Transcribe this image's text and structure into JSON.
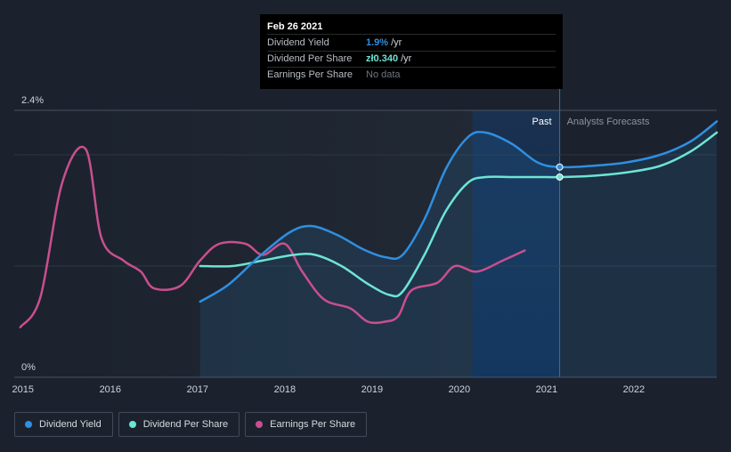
{
  "tooltip": {
    "date": "Feb 26 2021",
    "rows": [
      {
        "label": "Dividend Yield",
        "value": "1.9%",
        "unit": "/yr",
        "color": "#2f8fe0"
      },
      {
        "label": "Dividend Per Share",
        "value": "zł0.340",
        "unit": "/yr",
        "color": "#6de4d4"
      },
      {
        "label": "Earnings Per Share",
        "value": "",
        "unit": "",
        "nodata": "No data",
        "color": ""
      }
    ]
  },
  "regions": {
    "past": "Past",
    "forecast": "Analysts Forecasts"
  },
  "legend": [
    {
      "label": "Dividend Yield",
      "color": "#2f8fe0"
    },
    {
      "label": "Dividend Per Share",
      "color": "#6de4d4"
    },
    {
      "label": "Earnings Per Share",
      "color": "#c94f8e"
    }
  ],
  "chart_data": {
    "type": "line",
    "y_axis_labels": [
      "2.4%",
      "0%"
    ],
    "ylim": [
      0,
      2.4
    ],
    "xlim": [
      2014.9,
      2022.95
    ],
    "x_ticks": [
      "2015",
      "2016",
      "2017",
      "2018",
      "2019",
      "2020",
      "2021",
      "2022"
    ],
    "past_end": 2021.15,
    "past_highlight_start": 2020.15,
    "marker_x": 2021.15,
    "series": [
      {
        "name": "Dividend Yield",
        "color": "#2f8fe0",
        "points": [
          [
            2017.03,
            0.68
          ],
          [
            2017.35,
            0.83
          ],
          [
            2017.7,
            1.08
          ],
          [
            2018.05,
            1.3
          ],
          [
            2018.3,
            1.36
          ],
          [
            2018.6,
            1.28
          ],
          [
            2018.9,
            1.15
          ],
          [
            2019.15,
            1.08
          ],
          [
            2019.35,
            1.1
          ],
          [
            2019.6,
            1.42
          ],
          [
            2019.85,
            1.88
          ],
          [
            2020.1,
            2.16
          ],
          [
            2020.3,
            2.2
          ],
          [
            2020.6,
            2.1
          ],
          [
            2020.9,
            1.93
          ],
          [
            2021.15,
            1.89
          ],
          [
            2021.5,
            1.9
          ],
          [
            2021.9,
            1.93
          ],
          [
            2022.3,
            2.0
          ],
          [
            2022.65,
            2.12
          ],
          [
            2022.95,
            2.3
          ]
        ]
      },
      {
        "name": "Dividend Per Share",
        "color": "#6de4d4",
        "points": [
          [
            2017.03,
            1.0
          ],
          [
            2017.4,
            1.0
          ],
          [
            2017.75,
            1.05
          ],
          [
            2018.1,
            1.1
          ],
          [
            2018.35,
            1.1
          ],
          [
            2018.65,
            1.0
          ],
          [
            2018.95,
            0.84
          ],
          [
            2019.2,
            0.74
          ],
          [
            2019.35,
            0.77
          ],
          [
            2019.6,
            1.1
          ],
          [
            2019.85,
            1.5
          ],
          [
            2020.1,
            1.75
          ],
          [
            2020.3,
            1.8
          ],
          [
            2020.6,
            1.8
          ],
          [
            2020.9,
            1.8
          ],
          [
            2021.15,
            1.8
          ],
          [
            2021.5,
            1.81
          ],
          [
            2021.9,
            1.84
          ],
          [
            2022.3,
            1.9
          ],
          [
            2022.65,
            2.03
          ],
          [
            2022.95,
            2.2
          ]
        ]
      },
      {
        "name": "Earnings Per Share",
        "color": "#c94f8e",
        "points": [
          [
            2014.97,
            0.45
          ],
          [
            2015.2,
            0.72
          ],
          [
            2015.45,
            1.75
          ],
          [
            2015.72,
            2.05
          ],
          [
            2015.9,
            1.25
          ],
          [
            2016.15,
            1.05
          ],
          [
            2016.35,
            0.95
          ],
          [
            2016.5,
            0.8
          ],
          [
            2016.8,
            0.82
          ],
          [
            2017.03,
            1.05
          ],
          [
            2017.25,
            1.2
          ],
          [
            2017.55,
            1.2
          ],
          [
            2017.75,
            1.1
          ],
          [
            2018.0,
            1.2
          ],
          [
            2018.2,
            0.95
          ],
          [
            2018.45,
            0.7
          ],
          [
            2018.75,
            0.62
          ],
          [
            2018.95,
            0.5
          ],
          [
            2019.15,
            0.5
          ],
          [
            2019.3,
            0.55
          ],
          [
            2019.45,
            0.78
          ],
          [
            2019.75,
            0.85
          ],
          [
            2019.95,
            1.0
          ],
          [
            2020.2,
            0.95
          ],
          [
            2020.5,
            1.05
          ],
          [
            2020.75,
            1.14
          ]
        ]
      }
    ]
  }
}
